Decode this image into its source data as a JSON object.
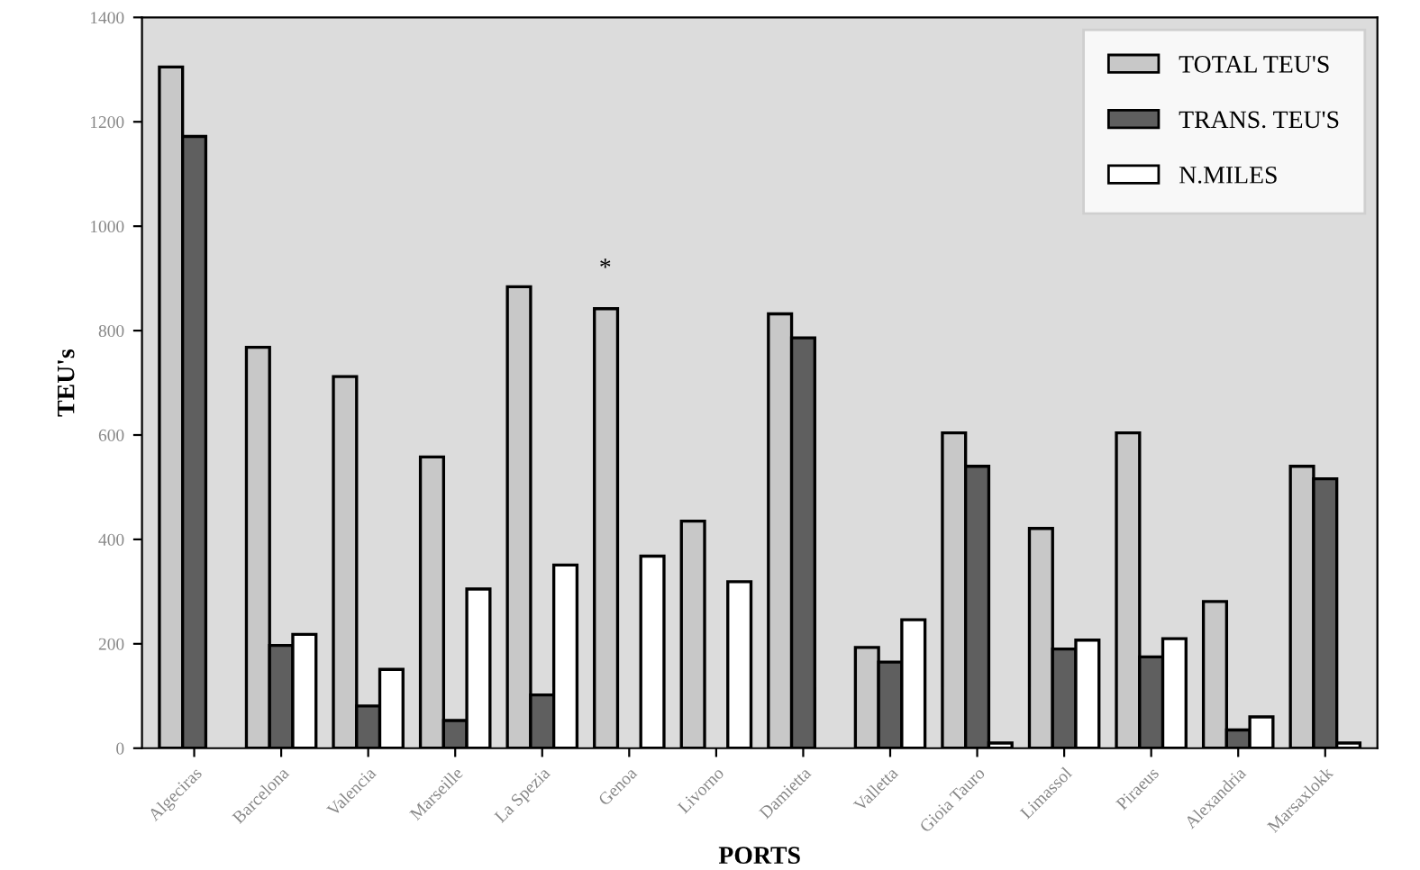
{
  "chart_data": {
    "type": "bar",
    "xlabel": "PORTS",
    "ylabel": "TEU's",
    "categories": [
      "Algeciras",
      "Barcelona",
      "Valencia",
      "Marseille",
      "La Spezia",
      "Genoa",
      "Livorno",
      "Damietta",
      "Valletta",
      "Gioia Tauro",
      "Limassol",
      "Piraeus",
      "Alexandria",
      "Marsaxlokk"
    ],
    "series": [
      {
        "name": "TOTAL TEU'S",
        "color": "#c8c8c8",
        "values": [
          1305,
          768,
          712,
          558,
          884,
          842,
          435,
          832,
          193,
          604,
          421,
          604,
          281,
          540
        ]
      },
      {
        "name": "TRANS. TEU'S",
        "color": "#5f5f5f",
        "values": [
          1172,
          197,
          81,
          53,
          102,
          null,
          null,
          786,
          165,
          540,
          190,
          175,
          35,
          516
        ]
      },
      {
        "name": "N.MILES",
        "color": "#ffffff",
        "values": [
          null,
          218,
          151,
          305,
          351,
          368,
          319,
          null,
          246,
          10,
          207,
          210,
          60,
          10
        ]
      }
    ],
    "ylim": [
      0,
      1400
    ],
    "yticks": [
      0,
      200,
      400,
      600,
      800,
      1000,
      1200,
      1400
    ],
    "annotations": [
      "*"
    ],
    "legend": "top right",
    "grid": false
  }
}
